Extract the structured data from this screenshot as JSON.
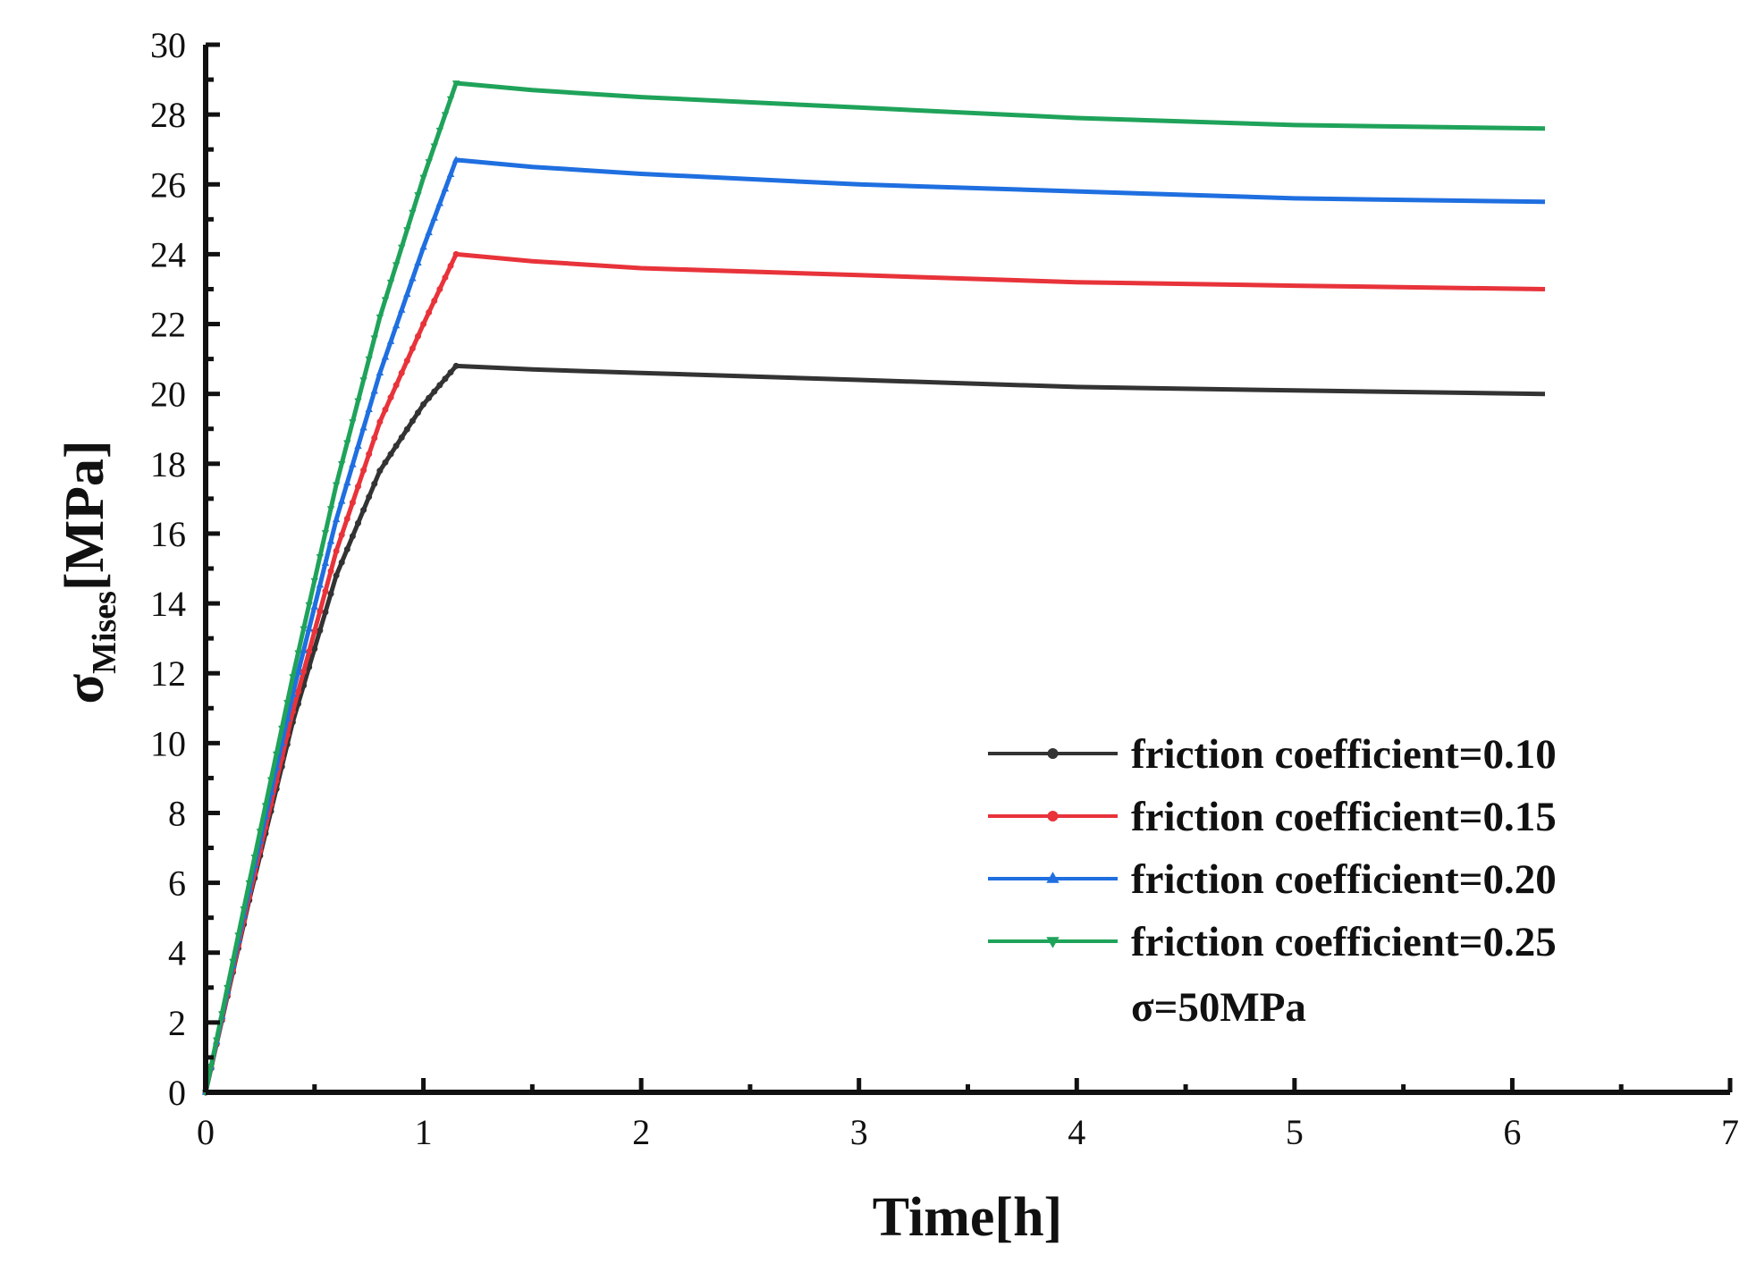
{
  "chart_data": {
    "type": "line",
    "title": "",
    "xlabel": "Time[h]",
    "ylabel": {
      "main": "σ",
      "subscript": "Mises",
      "unit": "[MPa]"
    },
    "xlim": [
      0,
      7
    ],
    "ylim": [
      0,
      30
    ],
    "x_ticks": [
      "0",
      "1",
      "2",
      "3",
      "4",
      "5",
      "6",
      "7"
    ],
    "y_ticks": [
      "0",
      "2",
      "4",
      "6",
      "8",
      "10",
      "12",
      "14",
      "16",
      "18",
      "20",
      "22",
      "24",
      "26",
      "28",
      "30"
    ],
    "grid": false,
    "legend_position": "bottom-right",
    "annotation": "σ=50MPa",
    "series": [
      {
        "name": "friction coefficient=0.10",
        "color": "#333333",
        "marker": "circle",
        "points": [
          [
            0,
            0
          ],
          [
            0.2,
            5.5
          ],
          [
            0.4,
            10.6
          ],
          [
            0.6,
            14.8
          ],
          [
            0.8,
            17.8
          ],
          [
            1.0,
            19.7
          ],
          [
            1.15,
            20.8
          ],
          [
            1.5,
            20.7
          ],
          [
            2,
            20.6
          ],
          [
            3,
            20.4
          ],
          [
            4,
            20.2
          ],
          [
            5,
            20.1
          ],
          [
            6.15,
            20.0
          ]
        ]
      },
      {
        "name": "friction coefficient=0.15",
        "color": "#e8333a",
        "marker": "circle",
        "points": [
          [
            0,
            0
          ],
          [
            0.2,
            5.6
          ],
          [
            0.4,
            10.9
          ],
          [
            0.6,
            15.5
          ],
          [
            0.8,
            19.2
          ],
          [
            1.0,
            22.0
          ],
          [
            1.15,
            24.0
          ],
          [
            1.5,
            23.8
          ],
          [
            2,
            23.6
          ],
          [
            3,
            23.4
          ],
          [
            4,
            23.2
          ],
          [
            5,
            23.1
          ],
          [
            6.15,
            23.0
          ]
        ]
      },
      {
        "name": "friction coefficient=0.20",
        "color": "#1f6fe0",
        "marker": "triangle-up",
        "points": [
          [
            0,
            0
          ],
          [
            0.2,
            5.8
          ],
          [
            0.4,
            11.4
          ],
          [
            0.6,
            16.4
          ],
          [
            0.8,
            20.6
          ],
          [
            1.0,
            24.2
          ],
          [
            1.15,
            26.7
          ],
          [
            1.5,
            26.5
          ],
          [
            2,
            26.3
          ],
          [
            3,
            26.0
          ],
          [
            4,
            25.8
          ],
          [
            5,
            25.6
          ],
          [
            6.15,
            25.5
          ]
        ]
      },
      {
        "name": "friction coefficient=0.25",
        "color": "#1fa35a",
        "marker": "triangle-down",
        "points": [
          [
            0,
            0
          ],
          [
            0.2,
            6.0
          ],
          [
            0.4,
            11.9
          ],
          [
            0.6,
            17.4
          ],
          [
            0.8,
            22.2
          ],
          [
            1.0,
            26.2
          ],
          [
            1.15,
            28.9
          ],
          [
            1.5,
            28.7
          ],
          [
            2,
            28.5
          ],
          [
            3,
            28.2
          ],
          [
            4,
            27.9
          ],
          [
            5,
            27.7
          ],
          [
            6.15,
            27.6
          ]
        ]
      }
    ]
  }
}
